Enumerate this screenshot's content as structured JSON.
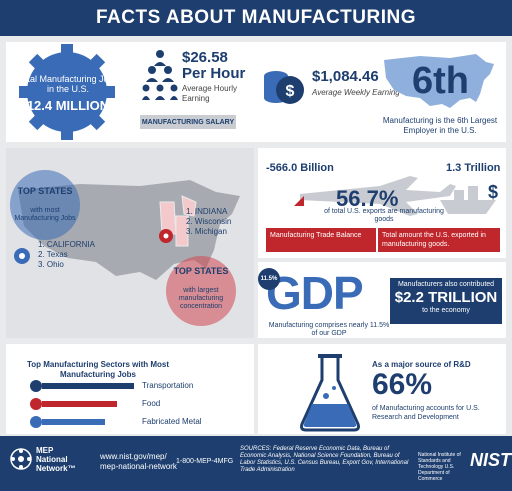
{
  "title": "FACTS ABOUT MANUFACTURING",
  "jobs": {
    "label": "Total Manufacturing Jobs in the U.S.",
    "value": "12.4 MILLION"
  },
  "salary": {
    "hourly_value": "$26.58",
    "hourly_unit": "Per Hour",
    "hourly_label": "Average Hourly Earning",
    "bar_label": "MANUFACTURING SALARY",
    "weekly_value": "$1,084.46",
    "weekly_label": "Average Weekly Earning"
  },
  "rank": {
    "value": "6th",
    "label": "Manufacturing is the 6th Largest Employer in the U.S."
  },
  "states": {
    "most_title": "TOP STATES",
    "most_sub": "with most Manufacturing Jobs",
    "most_list": [
      "1. CALIFORNIA",
      "2. Texas",
      "3. Ohio"
    ],
    "concentration_title": "TOP STATES",
    "concentration_sub": "with largest manufacturing concentration",
    "concentration_list": [
      "1. INDIANA",
      "2. Wisconsin",
      "3. Michigan"
    ]
  },
  "trade": {
    "left_value": "-566.0 Billion",
    "right_value": "1.3 Trillion",
    "percent": "56.7%",
    "percent_label": "of total U.S. exports are manufacturing goods",
    "left_box": "Manufacturing Trade Balance",
    "right_box": "Total amount the U.S. exported in manufacturing goods."
  },
  "gdp": {
    "badge": "11.5%",
    "word": "GDP",
    "label": "Manufacturing comprises nearly 11.5% of our GDP",
    "contrib_top": "Manufacturers also contributed",
    "contrib_value": "$2.2 TRILLION",
    "contrib_bottom": "to the economy"
  },
  "sectors": {
    "title": "Top Manufacturing Sectors with Most Manufacturing Jobs",
    "items": [
      {
        "label": "Transportation",
        "color": "#1d3e6e",
        "level": 1.0
      },
      {
        "label": "Food",
        "color": "#c0272d",
        "level": 0.82
      },
      {
        "label": "Fabricated Metal",
        "color": "#3a6bb7",
        "level": 0.68
      }
    ]
  },
  "rd": {
    "title": "As a major source of R&D",
    "value": "66%",
    "label": "of Manufacturing accounts for U.S. Research and Development"
  },
  "footer": {
    "org_line1": "MEP",
    "org_line2": "National",
    "org_line3": "Network™",
    "web1": "www.nist.gov/mep/",
    "web2": "mep-national-network",
    "phone": "1-800-MEP-4MFG",
    "sources": "SOURCES: Federal Reserve Economic Data, Bureau of Economic Analysis, National Science Foundation, Bureau of Labor Statistics, U.S. Census Bureau, Export Gov, International Trade Administration",
    "nist_small": "National Institute of Standards and Technology U.S. Department of Commerce",
    "nist": "NIST"
  },
  "colors": {
    "navy": "#1d3e6e",
    "blue": "#3a6bb7",
    "red": "#c0272d",
    "gray": "#e9eaec"
  }
}
